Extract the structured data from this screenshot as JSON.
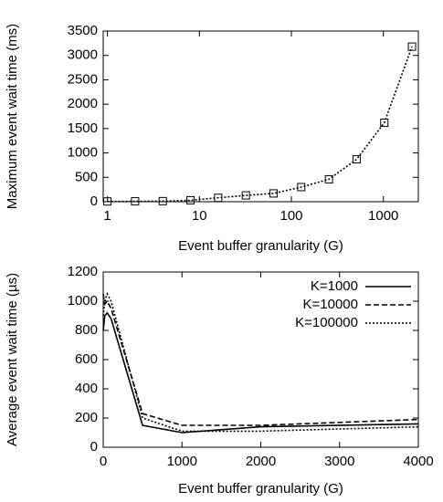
{
  "chart_data": [
    {
      "type": "line",
      "x_label": "Event buffer granularity (G)",
      "y_label": "Maximum event wait time (ms)",
      "x_scale": "log",
      "xlim": [
        0.9,
        2400
      ],
      "xticks": [
        1,
        10,
        100,
        1000
      ],
      "ylim": [
        0,
        3500
      ],
      "yticks": [
        0,
        500,
        1000,
        1500,
        2000,
        2500,
        3000,
        3500
      ],
      "x": [
        1,
        2,
        4,
        8,
        16,
        32,
        64,
        128,
        256,
        512,
        1024,
        2048
      ],
      "series": [
        {
          "color": "#000000",
          "dash": "dotted",
          "marker": "square",
          "values": [
            5,
            8,
            12,
            30,
            80,
            130,
            170,
            300,
            460,
            870,
            1620,
            3180
          ]
        }
      ]
    },
    {
      "type": "line",
      "x_label": "Event buffer granularity (G)",
      "y_label": "Average event wait time (µs)",
      "x_scale": "linear",
      "xlim": [
        0,
        4000
      ],
      "xticks": [
        0,
        1000,
        2000,
        3000,
        4000
      ],
      "ylim": [
        0,
        1200
      ],
      "yticks": [
        0,
        200,
        400,
        600,
        800,
        1000,
        1200
      ],
      "legend": "top-right",
      "x": [
        0,
        20,
        50,
        100,
        500,
        1000,
        2000,
        4000
      ],
      "series": [
        {
          "name": "K=1000",
          "color": "#000000",
          "dash": "solid",
          "values": [
            800,
            900,
            920,
            880,
            150,
            100,
            140,
            160
          ]
        },
        {
          "name": "K=10000",
          "color": "#000000",
          "dash": "dashed",
          "values": [
            1050,
            980,
            1000,
            950,
            230,
            150,
            150,
            190
          ]
        },
        {
          "name": "K=100000",
          "color": "#000000",
          "dash": "dotted",
          "values": [
            900,
            1000,
            1050,
            1000,
            200,
            110,
            110,
            140
          ]
        }
      ]
    }
  ]
}
